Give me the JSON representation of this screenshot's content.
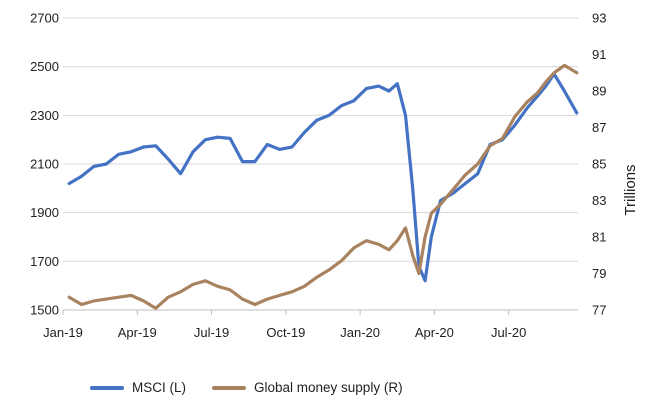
{
  "chart_data": {
    "type": "line",
    "x_tick_labels": [
      "Jan-19",
      "Apr-19",
      "Jul-19",
      "Oct-19",
      "Jan-20",
      "Apr-20",
      "Jul-20"
    ],
    "y_left": {
      "ticks": [
        1500,
        1700,
        1900,
        2100,
        2300,
        2500,
        2700
      ],
      "range": [
        1500,
        2700
      ]
    },
    "y_right": {
      "ticks": [
        77,
        79,
        81,
        83,
        85,
        87,
        89,
        91,
        93
      ],
      "range": [
        77,
        93
      ],
      "label": "Trillions"
    },
    "grid": "horizontal",
    "legend_position": "bottom",
    "series": [
      {
        "name": "MSCI (L)",
        "axis": "left",
        "color": "#4472C4",
        "points": [
          [
            "Jan-19",
            2020
          ],
          [
            "Jan-19",
            2050
          ],
          [
            "Feb-19",
            2090
          ],
          [
            "Feb-19",
            2100
          ],
          [
            "Mar-19",
            2140
          ],
          [
            "Mar-19",
            2150
          ],
          [
            "Apr-19",
            2170
          ],
          [
            "Apr-19",
            2175
          ],
          [
            "May-19",
            2120
          ],
          [
            "May-19",
            2060
          ],
          [
            "Jun-19",
            2150
          ],
          [
            "Jun-19",
            2200
          ],
          [
            "Jul-19",
            2210
          ],
          [
            "Jul-19",
            2205
          ],
          [
            "Aug-19",
            2110
          ],
          [
            "Aug-19",
            2110
          ],
          [
            "Sep-19",
            2180
          ],
          [
            "Sep-19",
            2160
          ],
          [
            "Oct-19",
            2170
          ],
          [
            "Oct-19",
            2230
          ],
          [
            "Nov-19",
            2280
          ],
          [
            "Nov-19",
            2300
          ],
          [
            "Dec-19",
            2340
          ],
          [
            "Dec-19",
            2360
          ],
          [
            "Jan-20",
            2410
          ],
          [
            "Jan-20",
            2420
          ],
          [
            "Feb-20",
            2400
          ],
          [
            "Feb-20",
            2430
          ],
          [
            "Feb-20",
            2300
          ],
          [
            "Mar-20",
            2000
          ],
          [
            "Mar-20",
            1680
          ],
          [
            "Mar-20",
            1620
          ],
          [
            "Mar-20",
            1800
          ],
          [
            "Apr-20",
            1950
          ],
          [
            "Apr-20",
            1980
          ],
          [
            "May-20",
            2020
          ],
          [
            "May-20",
            2060
          ],
          [
            "Jun-20",
            2180
          ],
          [
            "Jun-20",
            2200
          ],
          [
            "Jul-20",
            2260
          ],
          [
            "Jul-20",
            2330
          ],
          [
            "Aug-20",
            2380
          ],
          [
            "Aug-20",
            2420
          ],
          [
            "Aug-20",
            2470
          ],
          [
            "Sep-20",
            2400
          ],
          [
            "Sep-20",
            2310
          ]
        ]
      },
      {
        "name": "Global money supply (R)",
        "axis": "right",
        "color": "#A9835F",
        "points": [
          [
            "Jan-19",
            77.7
          ],
          [
            "Jan-19",
            77.3
          ],
          [
            "Feb-19",
            77.5
          ],
          [
            "Feb-19",
            77.6
          ],
          [
            "Mar-19",
            77.7
          ],
          [
            "Mar-19",
            77.8
          ],
          [
            "Apr-19",
            77.5
          ],
          [
            "Apr-19",
            77.1
          ],
          [
            "May-19",
            77.7
          ],
          [
            "May-19",
            78.0
          ],
          [
            "Jun-19",
            78.4
          ],
          [
            "Jun-19",
            78.6
          ],
          [
            "Jul-19",
            78.3
          ],
          [
            "Jul-19",
            78.1
          ],
          [
            "Aug-19",
            77.6
          ],
          [
            "Aug-19",
            77.3
          ],
          [
            "Sep-19",
            77.6
          ],
          [
            "Sep-19",
            77.8
          ],
          [
            "Oct-19",
            78.0
          ],
          [
            "Oct-19",
            78.3
          ],
          [
            "Nov-19",
            78.8
          ],
          [
            "Nov-19",
            79.2
          ],
          [
            "Dec-19",
            79.7
          ],
          [
            "Dec-19",
            80.4
          ],
          [
            "Jan-20",
            80.8
          ],
          [
            "Jan-20",
            80.6
          ],
          [
            "Feb-20",
            80.3
          ],
          [
            "Feb-20",
            80.8
          ],
          [
            "Feb-20",
            81.5
          ],
          [
            "Mar-20",
            80.0
          ],
          [
            "Mar-20",
            79.0
          ],
          [
            "Mar-20",
            81.0
          ],
          [
            "Mar-20",
            82.3
          ],
          [
            "Apr-20",
            82.8
          ],
          [
            "Apr-20",
            83.6
          ],
          [
            "May-20",
            84.4
          ],
          [
            "May-20",
            85.0
          ],
          [
            "Jun-20",
            86.0
          ],
          [
            "Jun-20",
            86.4
          ],
          [
            "Jul-20",
            87.6
          ],
          [
            "Jul-20",
            88.4
          ],
          [
            "Aug-20",
            88.9
          ],
          [
            "Aug-20",
            89.5
          ],
          [
            "Aug-20",
            90.0
          ],
          [
            "Sep-20",
            90.4
          ],
          [
            "Sep-20",
            90.0
          ]
        ]
      }
    ]
  }
}
